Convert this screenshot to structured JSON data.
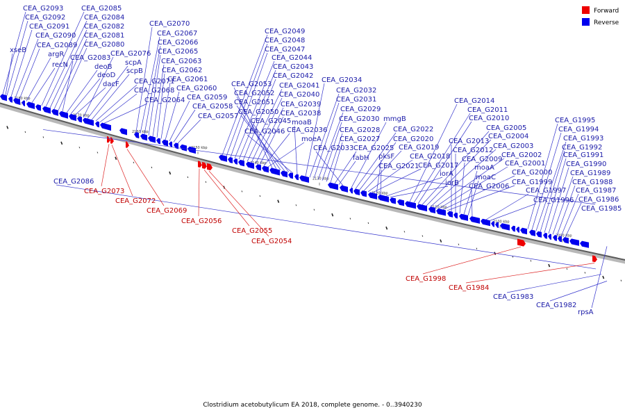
{
  "legend": [
    {
      "label": "Forward",
      "color": "#ee0000"
    },
    {
      "label": "Reverse",
      "color": "#0000ee"
    }
  ],
  "caption": "Clostridium acetobutylicum EA 2018, complete genome. - 0..3940230",
  "tick_labels": [
    "2180 kbp",
    "2170 kbp",
    "2160 kbp",
    "2150 kbp",
    "2140 kbp",
    "2130 kbp",
    "2120 kbp",
    "2110 kbp",
    "2100 kbp",
    "2090 kbp"
  ],
  "reverse_genes": [
    "CEA_G2093",
    "CEA_G2092",
    "CEA_G2091",
    "CEA_G2090",
    "CEA_G2089",
    "xseB",
    "argR",
    "recN",
    "CEA_G2085",
    "CEA_G2084",
    "CEA_G2082",
    "CEA_G2081",
    "CEA_G2080",
    "CEA_G2083",
    "deoB",
    "deoD",
    "dacF",
    "CEA_G2076",
    "scpA",
    "scpB",
    "CEA_G2071",
    "CEA_G2068",
    "CEA_G2064",
    "CEA_G2070",
    "CEA_G2067",
    "CEA_G2066",
    "CEA_G2065",
    "CEA_G2063",
    "CEA_G2062",
    "CEA_G2061",
    "CEA_G2060",
    "CEA_G2059",
    "CEA_G2058",
    "CEA_G2057",
    "CEA_G2049",
    "CEA_G2048",
    "CEA_G2047",
    "CEA_G2044",
    "CEA_G2043",
    "CEA_G2042",
    "CEA_G2041",
    "CEA_G2040",
    "CEA_G2039",
    "CEA_G2038",
    "CEA_G2036",
    "moeA",
    "CEA_G2053",
    "CEA_G2052",
    "CEA_G2051",
    "CEA_G2050",
    "CEA_G2045",
    "CEA_G2046",
    "moaB",
    "CEA_G2034",
    "CEA_G2032",
    "CEA_G2031",
    "CEA_G2029",
    "CEA_G2030",
    "CEA_G2028",
    "CEA_G2027",
    "CEA_G2025",
    "fabH",
    "CEA_G2033",
    "mmgB",
    "CEA_G2022",
    "CEA_G2020",
    "CEA_G2019",
    "CEA_G2018",
    "CEA_G2017",
    "pksF",
    "CEA_G2021",
    "iorA",
    "iorB",
    "CEA_G2014",
    "CEA_G2011",
    "CEA_G2010",
    "CEA_G2005",
    "CEA_G2004",
    "CEA_G2003",
    "CEA_G2002",
    "CEA_G2001",
    "CEA_G2000",
    "CEA_G1999",
    "CEA_G2013",
    "CEA_G2012",
    "CEA_G2009",
    "moaA",
    "moaC",
    "CEA_G2006",
    "CEA_G1997",
    "CEA_G1996",
    "CEA_G1995",
    "CEA_G1994",
    "CEA_G1993",
    "CEA_G1992",
    "CEA_G1991",
    "CEA_G1990",
    "CEA_G1989",
    "CEA_G1988",
    "CEA_G1987",
    "CEA_G1986",
    "CEA_G1985",
    "CEA_G2086",
    "CEA_G1983",
    "CEA_G1982",
    "rpsA"
  ],
  "forward_genes": [
    "CEA_G2073",
    "CEA_G2072",
    "CEA_G2069",
    "CEA_G2056",
    "CEA_G2055",
    "CEA_G2054",
    "CEA_G1998",
    "CEA_G1984"
  ]
}
